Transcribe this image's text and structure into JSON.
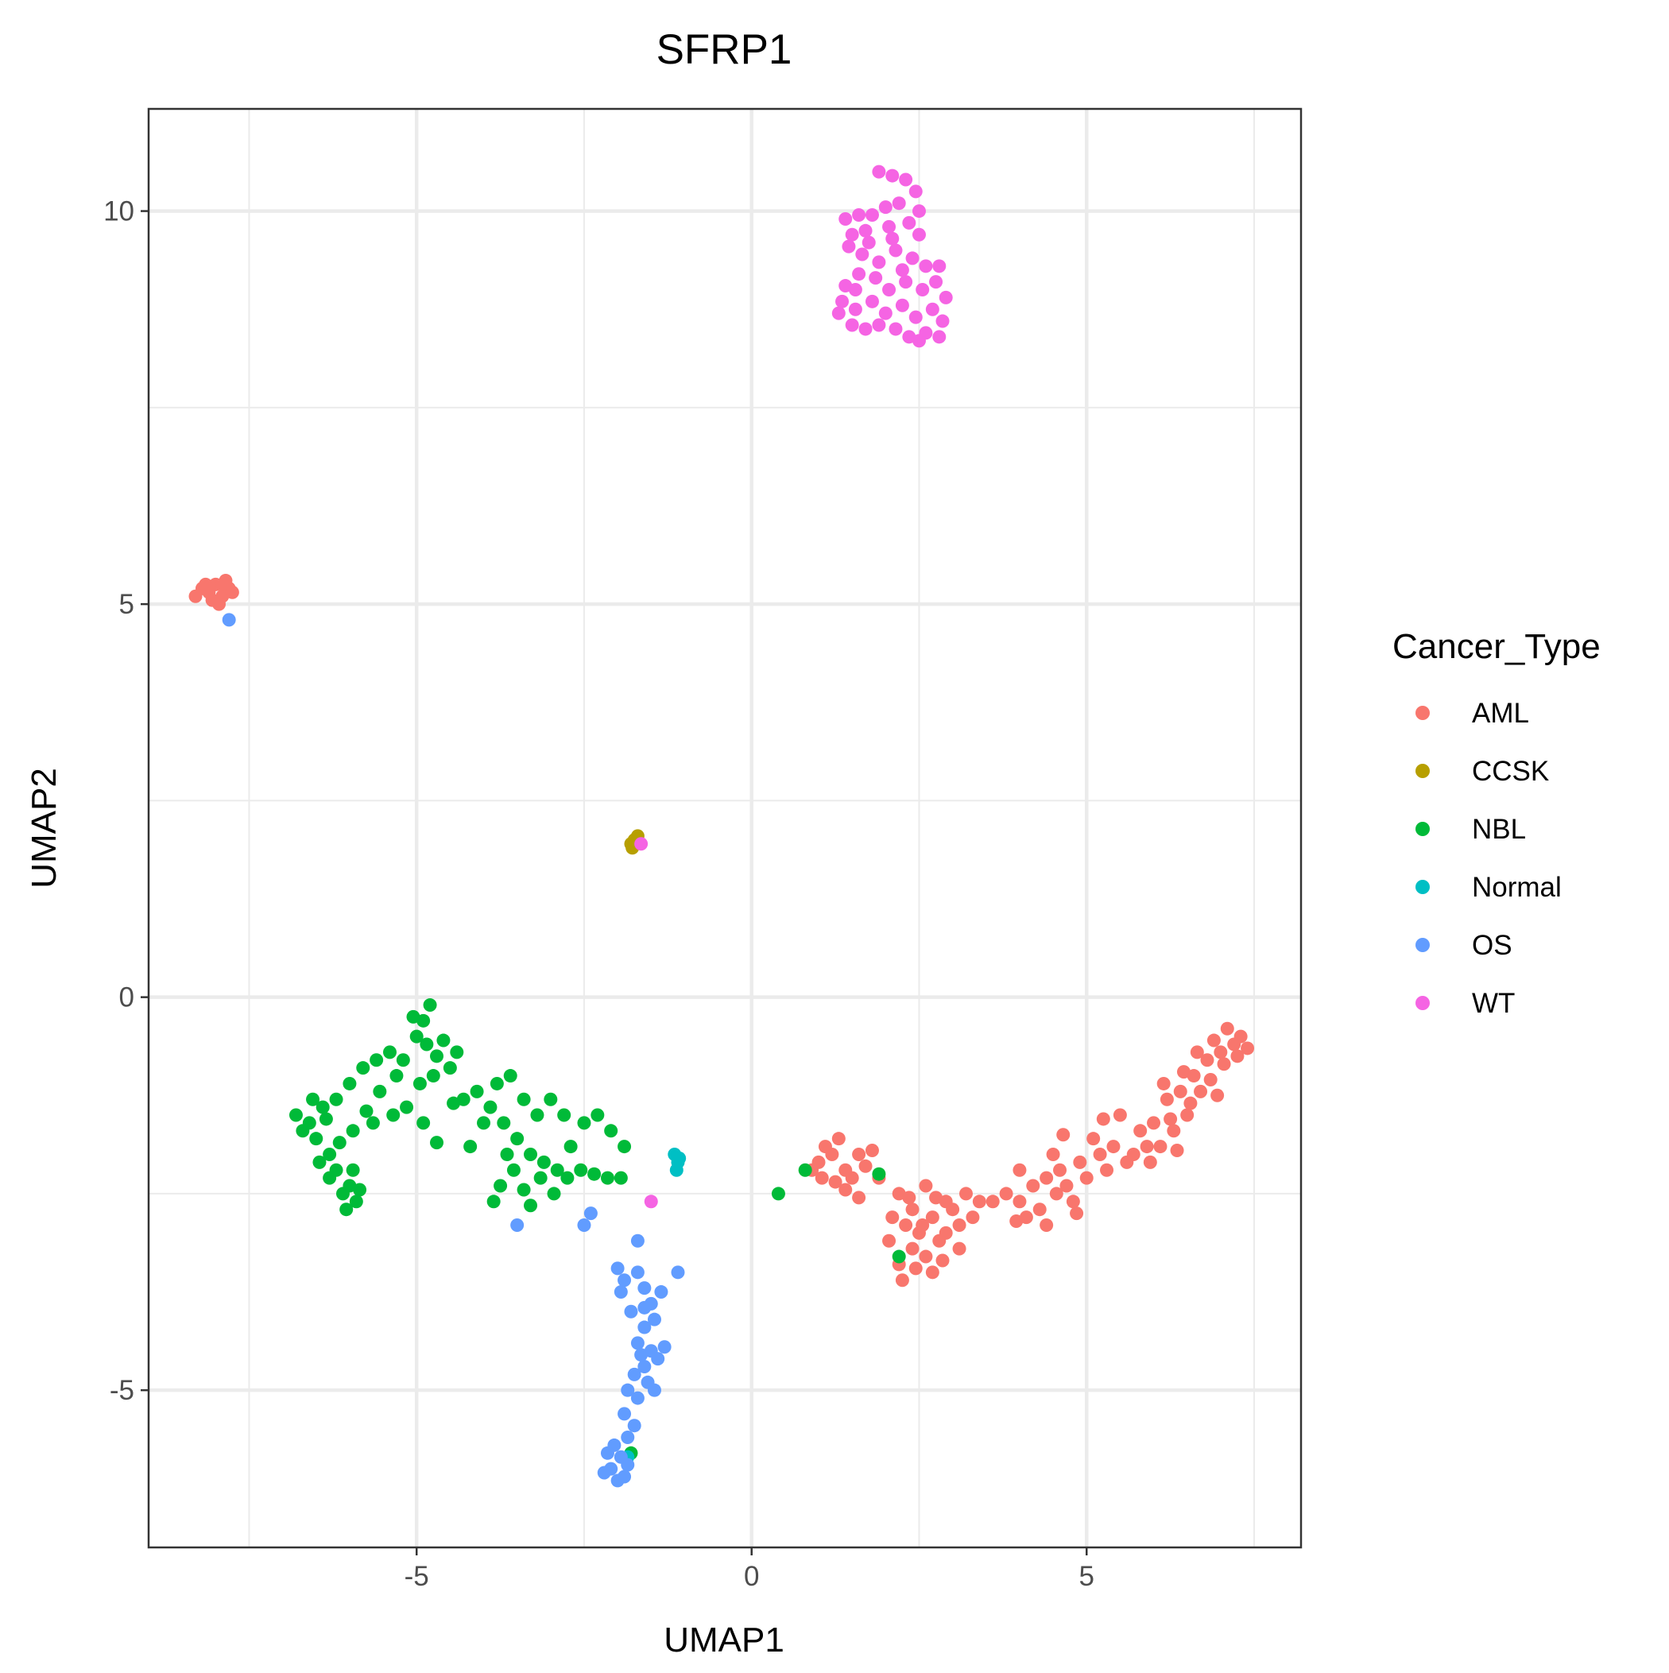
{
  "chart_data": {
    "type": "scatter",
    "title": "SFRP1",
    "xlabel": "UMAP1",
    "ylabel": "UMAP2",
    "xlim": [
      -9.0,
      8.2
    ],
    "ylim": [
      -7.0,
      11.3
    ],
    "x_ticks": [
      -5,
      0,
      5
    ],
    "y_ticks": [
      -5,
      0,
      5,
      10
    ],
    "x_tick_labels": [
      "-5",
      "0",
      "5"
    ],
    "y_tick_labels": [
      "-5",
      "0",
      "5",
      "10"
    ],
    "grid": true,
    "legend_title": "Cancer_Type",
    "legend_position": "right",
    "series": [
      {
        "name": "AML",
        "color": "#F8766D",
        "points": [
          [
            -8.3,
            5.1
          ],
          [
            -8.2,
            5.2
          ],
          [
            -8.1,
            5.15
          ],
          [
            -8.0,
            5.25
          ],
          [
            -7.9,
            5.1
          ],
          [
            -7.8,
            5.2
          ],
          [
            -7.85,
            5.3
          ],
          [
            -8.05,
            5.05
          ],
          [
            -7.95,
            5.0
          ],
          [
            -7.75,
            5.15
          ],
          [
            -8.15,
            5.25
          ],
          [
            -7.9,
            5.25
          ],
          [
            1.0,
            -2.1
          ],
          [
            1.2,
            -2.0
          ],
          [
            1.4,
            -2.2
          ],
          [
            1.3,
            -1.8
          ],
          [
            1.5,
            -2.3
          ],
          [
            1.6,
            -2.0
          ],
          [
            1.1,
            -1.9
          ],
          [
            0.9,
            -2.2
          ],
          [
            1.7,
            -2.15
          ],
          [
            1.4,
            -2.45
          ],
          [
            1.6,
            -2.55
          ],
          [
            1.25,
            -2.35
          ],
          [
            1.9,
            -2.3
          ],
          [
            1.8,
            -1.95
          ],
          [
            1.05,
            -2.3
          ],
          [
            2.2,
            -2.5
          ],
          [
            2.4,
            -2.7
          ],
          [
            2.6,
            -2.4
          ],
          [
            2.3,
            -2.9
          ],
          [
            2.7,
            -2.8
          ],
          [
            2.9,
            -2.6
          ],
          [
            2.5,
            -3.0
          ],
          [
            2.8,
            -3.1
          ],
          [
            3.0,
            -2.7
          ],
          [
            2.6,
            -3.3
          ],
          [
            2.4,
            -3.2
          ],
          [
            2.2,
            -3.4
          ],
          [
            2.7,
            -3.5
          ],
          [
            2.9,
            -3.0
          ],
          [
            3.1,
            -2.9
          ],
          [
            3.2,
            -2.5
          ],
          [
            3.4,
            -2.6
          ],
          [
            2.1,
            -2.8
          ],
          [
            2.35,
            -2.55
          ],
          [
            2.55,
            -2.9
          ],
          [
            2.75,
            -2.55
          ],
          [
            2.85,
            -3.35
          ],
          [
            3.3,
            -2.8
          ],
          [
            2.25,
            -3.6
          ],
          [
            2.45,
            -3.45
          ],
          [
            3.6,
            -2.6
          ],
          [
            3.1,
            -3.2
          ],
          [
            2.05,
            -3.1
          ],
          [
            3.8,
            -2.5
          ],
          [
            4.0,
            -2.6
          ],
          [
            4.2,
            -2.4
          ],
          [
            4.4,
            -2.3
          ],
          [
            4.6,
            -2.2
          ],
          [
            4.3,
            -2.7
          ],
          [
            4.5,
            -2.0
          ],
          [
            4.7,
            -2.4
          ],
          [
            4.9,
            -2.1
          ],
          [
            5.0,
            -2.3
          ],
          [
            5.2,
            -2.0
          ],
          [
            5.4,
            -1.9
          ],
          [
            5.1,
            -1.8
          ],
          [
            5.6,
            -2.1
          ],
          [
            5.8,
            -1.7
          ],
          [
            6.0,
            -1.6
          ],
          [
            5.5,
            -1.5
          ],
          [
            5.9,
            -1.9
          ],
          [
            4.1,
            -2.8
          ],
          [
            4.4,
            -2.9
          ],
          [
            4.8,
            -2.6
          ],
          [
            4.65,
            -1.75
          ],
          [
            5.3,
            -2.2
          ],
          [
            5.7,
            -2.0
          ],
          [
            4.0,
            -2.2
          ],
          [
            4.85,
            -2.75
          ],
          [
            5.25,
            -1.55
          ],
          [
            4.55,
            -2.5
          ],
          [
            3.95,
            -2.85
          ],
          [
            6.2,
            -1.3
          ],
          [
            6.4,
            -1.2
          ],
          [
            6.6,
            -1.0
          ],
          [
            6.8,
            -0.8
          ],
          [
            7.0,
            -0.7
          ],
          [
            7.2,
            -0.6
          ],
          [
            7.4,
            -0.65
          ],
          [
            6.9,
            -0.55
          ],
          [
            7.1,
            -0.4
          ],
          [
            6.7,
            -1.2
          ],
          [
            6.5,
            -1.5
          ],
          [
            6.3,
            -1.7
          ],
          [
            6.1,
            -1.9
          ],
          [
            6.45,
            -0.95
          ],
          [
            7.05,
            -0.85
          ],
          [
            6.85,
            -1.05
          ],
          [
            6.95,
            -1.25
          ],
          [
            7.3,
            -0.5
          ],
          [
            6.25,
            -1.55
          ],
          [
            5.95,
            -2.1
          ],
          [
            6.55,
            -1.35
          ],
          [
            6.15,
            -1.1
          ],
          [
            7.25,
            -0.75
          ],
          [
            6.65,
            -0.7
          ],
          [
            6.35,
            -1.95
          ]
        ]
      },
      {
        "name": "CCSK",
        "color": "#B79F00",
        "points": [
          [
            -1.8,
            1.95
          ],
          [
            -1.75,
            2.0
          ],
          [
            -1.7,
            2.05
          ],
          [
            -1.78,
            1.9
          ]
        ]
      },
      {
        "name": "NBL",
        "color": "#00BA38",
        "points": [
          [
            -6.8,
            -1.5
          ],
          [
            -6.6,
            -1.6
          ],
          [
            -6.4,
            -1.4
          ],
          [
            -6.5,
            -1.8
          ],
          [
            -6.3,
            -2.0
          ],
          [
            -6.2,
            -2.2
          ],
          [
            -6.0,
            -2.4
          ],
          [
            -5.9,
            -2.6
          ],
          [
            -6.1,
            -2.5
          ],
          [
            -6.3,
            -2.3
          ],
          [
            -6.45,
            -2.1
          ],
          [
            -5.95,
            -2.2
          ],
          [
            -6.7,
            -1.7
          ],
          [
            -6.55,
            -1.3
          ],
          [
            -6.35,
            -1.55
          ],
          [
            -6.15,
            -1.85
          ],
          [
            -5.85,
            -2.45
          ],
          [
            -6.05,
            -2.7
          ],
          [
            -6.2,
            -1.3
          ],
          [
            -6.0,
            -1.1
          ],
          [
            -5.8,
            -0.9
          ],
          [
            -5.6,
            -0.8
          ],
          [
            -5.4,
            -0.7
          ],
          [
            -5.2,
            -0.8
          ],
          [
            -5.0,
            -0.5
          ],
          [
            -4.9,
            -0.3
          ],
          [
            -4.8,
            -0.1
          ],
          [
            -5.05,
            -0.25
          ],
          [
            -4.85,
            -0.6
          ],
          [
            -4.7,
            -0.75
          ],
          [
            -4.6,
            -0.55
          ],
          [
            -4.4,
            -0.7
          ],
          [
            -4.5,
            -0.9
          ],
          [
            -4.75,
            -1.0
          ],
          [
            -4.95,
            -1.1
          ],
          [
            -5.3,
            -1.0
          ],
          [
            -5.55,
            -1.2
          ],
          [
            -5.75,
            -1.45
          ],
          [
            -5.95,
            -1.7
          ],
          [
            -5.65,
            -1.6
          ],
          [
            -5.35,
            -1.5
          ],
          [
            -5.15,
            -1.4
          ],
          [
            -4.9,
            -1.6
          ],
          [
            -4.7,
            -1.85
          ],
          [
            -4.3,
            -1.3
          ],
          [
            -4.1,
            -1.2
          ],
          [
            -3.9,
            -1.4
          ],
          [
            -3.7,
            -1.6
          ],
          [
            -3.5,
            -1.8
          ],
          [
            -3.3,
            -2.0
          ],
          [
            -3.1,
            -2.1
          ],
          [
            -2.9,
            -2.2
          ],
          [
            -2.7,
            -1.9
          ],
          [
            -2.5,
            -1.6
          ],
          [
            -2.3,
            -1.5
          ],
          [
            -2.1,
            -1.7
          ],
          [
            -1.9,
            -1.9
          ],
          [
            -3.8,
            -1.1
          ],
          [
            -3.6,
            -1.0
          ],
          [
            -3.4,
            -1.3
          ],
          [
            -3.2,
            -1.5
          ],
          [
            -3.0,
            -1.3
          ],
          [
            -2.8,
            -1.5
          ],
          [
            -3.55,
            -2.2
          ],
          [
            -3.75,
            -2.4
          ],
          [
            -3.85,
            -2.6
          ],
          [
            -3.4,
            -2.45
          ],
          [
            -3.15,
            -2.3
          ],
          [
            -2.95,
            -2.5
          ],
          [
            -2.75,
            -2.3
          ],
          [
            -2.55,
            -2.2
          ],
          [
            -2.35,
            -2.25
          ],
          [
            -2.15,
            -2.3
          ],
          [
            -1.95,
            -2.3
          ],
          [
            -4.0,
            -1.6
          ],
          [
            -4.2,
            -1.9
          ],
          [
            -3.65,
            -2.0
          ],
          [
            -4.45,
            -1.35
          ],
          [
            -3.3,
            -2.65
          ],
          [
            0.4,
            -2.5
          ],
          [
            0.8,
            -2.2
          ],
          [
            1.9,
            -2.25
          ],
          [
            2.2,
            -3.3
          ],
          [
            -1.8,
            -5.8
          ]
        ]
      },
      {
        "name": "Normal",
        "color": "#00BFC4",
        "points": [
          [
            -1.15,
            -2.0
          ],
          [
            -1.1,
            -2.1
          ],
          [
            -1.12,
            -2.2
          ],
          [
            -1.08,
            -2.05
          ],
          [
            -1.85,
            -5.85
          ]
        ]
      },
      {
        "name": "OS",
        "color": "#619CFF",
        "points": [
          [
            -7.8,
            4.8
          ],
          [
            -3.5,
            -2.9
          ],
          [
            -2.5,
            -2.9
          ],
          [
            -2.4,
            -2.75
          ],
          [
            -1.7,
            -3.1
          ],
          [
            -1.1,
            -3.5
          ],
          [
            -2.0,
            -3.45
          ],
          [
            -1.9,
            -3.6
          ],
          [
            -1.7,
            -3.5
          ],
          [
            -1.6,
            -3.7
          ],
          [
            -1.5,
            -3.9
          ],
          [
            -1.8,
            -4.0
          ],
          [
            -1.6,
            -4.2
          ],
          [
            -1.45,
            -4.1
          ],
          [
            -1.7,
            -4.4
          ],
          [
            -1.5,
            -4.5
          ],
          [
            -1.3,
            -4.45
          ],
          [
            -1.6,
            -4.7
          ],
          [
            -1.4,
            -4.6
          ],
          [
            -1.75,
            -4.8
          ],
          [
            -1.55,
            -4.9
          ],
          [
            -1.85,
            -5.0
          ],
          [
            -1.7,
            -5.1
          ],
          [
            -1.9,
            -5.3
          ],
          [
            -1.75,
            -5.45
          ],
          [
            -1.85,
            -5.6
          ],
          [
            -2.05,
            -5.7
          ],
          [
            -1.95,
            -5.85
          ],
          [
            -2.1,
            -6.0
          ],
          [
            -1.9,
            -6.1
          ],
          [
            -2.0,
            -6.15
          ],
          [
            -1.85,
            -5.95
          ],
          [
            -2.15,
            -5.8
          ],
          [
            -1.6,
            -3.95
          ],
          [
            -1.35,
            -3.75
          ],
          [
            -1.95,
            -3.75
          ],
          [
            -1.65,
            -4.55
          ],
          [
            -1.45,
            -5.0
          ],
          [
            -2.2,
            -6.05
          ]
        ]
      },
      {
        "name": "WT",
        "color": "#F564E3",
        "points": [
          [
            -1.65,
            1.95
          ],
          [
            -1.5,
            -2.6
          ],
          [
            1.9,
            10.5
          ],
          [
            2.1,
            10.45
          ],
          [
            2.3,
            10.4
          ],
          [
            2.45,
            10.25
          ],
          [
            2.2,
            10.1
          ],
          [
            2.0,
            10.05
          ],
          [
            1.8,
            9.95
          ],
          [
            1.6,
            9.95
          ],
          [
            1.4,
            9.9
          ],
          [
            1.5,
            9.7
          ],
          [
            1.7,
            9.75
          ],
          [
            2.05,
            9.8
          ],
          [
            2.35,
            9.85
          ],
          [
            2.5,
            10.0
          ],
          [
            2.5,
            9.7
          ],
          [
            1.45,
            9.55
          ],
          [
            1.65,
            9.45
          ],
          [
            1.9,
            9.35
          ],
          [
            2.15,
            9.5
          ],
          [
            2.4,
            9.4
          ],
          [
            2.6,
            9.3
          ],
          [
            2.8,
            9.3
          ],
          [
            2.75,
            9.1
          ],
          [
            2.55,
            9.0
          ],
          [
            2.3,
            9.1
          ],
          [
            2.05,
            9.0
          ],
          [
            1.85,
            9.15
          ],
          [
            1.6,
            9.2
          ],
          [
            1.4,
            9.05
          ],
          [
            1.35,
            8.85
          ],
          [
            1.55,
            8.75
          ],
          [
            1.8,
            8.85
          ],
          [
            2.0,
            8.7
          ],
          [
            2.25,
            8.8
          ],
          [
            2.45,
            8.65
          ],
          [
            2.7,
            8.75
          ],
          [
            2.9,
            8.9
          ],
          [
            2.85,
            8.6
          ],
          [
            2.6,
            8.45
          ],
          [
            2.35,
            8.4
          ],
          [
            2.15,
            8.5
          ],
          [
            1.9,
            8.55
          ],
          [
            1.7,
            8.5
          ],
          [
            1.5,
            8.55
          ],
          [
            1.3,
            8.7
          ],
          [
            2.5,
            8.35
          ],
          [
            2.8,
            8.4
          ],
          [
            1.75,
            9.6
          ],
          [
            2.25,
            9.25
          ],
          [
            1.55,
            9.0
          ],
          [
            2.1,
            9.65
          ]
        ]
      }
    ]
  }
}
